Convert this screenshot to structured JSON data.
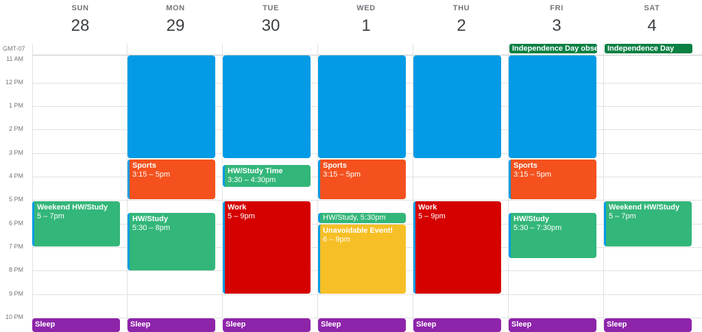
{
  "timezone": "GMT-07",
  "days": [
    {
      "name": "SUN",
      "num": "28"
    },
    {
      "name": "MON",
      "num": "29"
    },
    {
      "name": "TUE",
      "num": "30"
    },
    {
      "name": "WED",
      "num": "1"
    },
    {
      "name": "THU",
      "num": "2"
    },
    {
      "name": "FRI",
      "num": "3"
    },
    {
      "name": "SAT",
      "num": "4"
    }
  ],
  "hours": [
    "11 AM",
    "12 PM",
    "1 PM",
    "2 PM",
    "3 PM",
    "4 PM",
    "5 PM",
    "6 PM",
    "7 PM",
    "8 PM",
    "9 PM",
    "10 PM"
  ],
  "allday": {
    "fri": "Independence Day observed",
    "sat": "Independence Day"
  },
  "events": {
    "sun_hw": {
      "title": "Weekend HW/Study",
      "time": "5 – 7pm"
    },
    "sun_sleep": {
      "title": "Sleep"
    },
    "mon_sports": {
      "title": "Sports",
      "time": "3:15 – 5pm"
    },
    "mon_hw": {
      "title": "HW/Study",
      "time": "5:30 – 8pm"
    },
    "mon_sleep": {
      "title": "Sleep"
    },
    "tue_hw": {
      "title": "HW/Study Time",
      "time": "3:30 – 4:30pm"
    },
    "tue_work": {
      "title": "Work",
      "time": "5 – 9pm"
    },
    "tue_sleep": {
      "title": "Sleep"
    },
    "wed_sports": {
      "title": "Sports",
      "time": "3:15 – 5pm"
    },
    "wed_hw": {
      "title": "HW/Study, 5:30pm"
    },
    "wed_unavoidable": {
      "title": "Unavoidable Event!",
      "time": "6 – 9pm"
    },
    "wed_sleep": {
      "title": "Sleep"
    },
    "thu_work": {
      "title": "Work",
      "time": "5 – 9pm"
    },
    "thu_sleep": {
      "title": "Sleep"
    },
    "fri_sports": {
      "title": "Sports",
      "time": "3:15 – 5pm"
    },
    "fri_hw": {
      "title": "HW/Study",
      "time": "5:30 – 7:30pm"
    },
    "fri_sleep": {
      "title": "Sleep"
    },
    "sat_hw": {
      "title": "Weekend HW/Study",
      "time": "5 – 7pm"
    },
    "sat_sleep": {
      "title": "Sleep"
    }
  },
  "colors": {
    "blue": "#039be5",
    "orange": "#f4511e",
    "green": "#33b679",
    "red": "#d50000",
    "yellow": "#f6bf26",
    "purple": "#8e24aa",
    "holiday": "#0b8043"
  }
}
